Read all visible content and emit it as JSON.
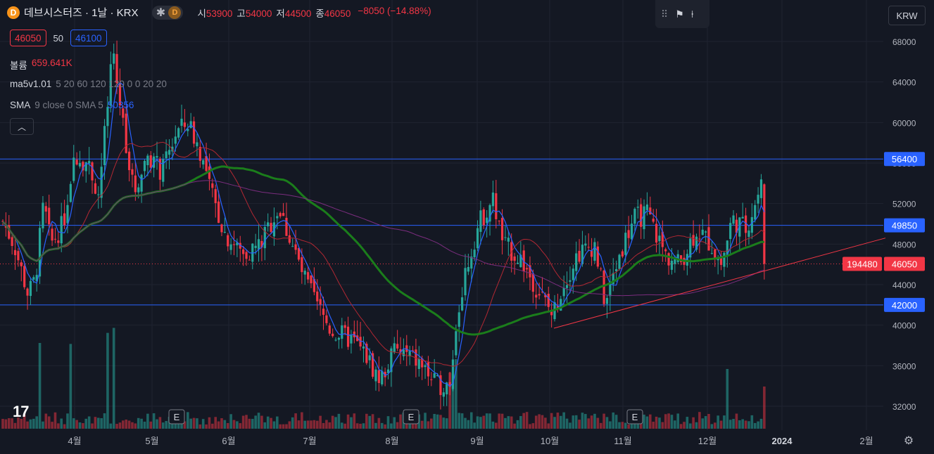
{
  "header": {
    "symbol_icon": "D",
    "title": "데브시스터즈 · 1날 · KRX",
    "pill_icons": [
      "asterisk-icon",
      "d-badge-icon"
    ],
    "pill_badge": "D",
    "ohlc": {
      "open_label": "시",
      "open": "53900",
      "high_label": "고",
      "high": "54000",
      "low_label": "저",
      "low": "44500",
      "close_label": "종",
      "close": "46050",
      "change": "−8050 (−14.88%)"
    }
  },
  "toolbar": {
    "icons": [
      "drag-handle-icon",
      "flag-icon",
      "pin-icon"
    ]
  },
  "quantity": {
    "sell": "46050",
    "qty": "50",
    "buy": "46100"
  },
  "indicators": [
    {
      "name": "볼륨",
      "args": "",
      "value": "659.641K"
    },
    {
      "name": "ma5v1.01",
      "args": "5 20 60 120 120 0 0 20 20",
      "value": ""
    },
    {
      "name": "SMA",
      "args": "9 close 0 SMA 5",
      "value": "50356"
    }
  ],
  "collapse_icon": "chevron-up-icon",
  "currency": "KRW",
  "y_axis_ticks": [
    "68000",
    "64000",
    "60000",
    "56000",
    "52000",
    "48000",
    "44000",
    "40000",
    "36000",
    "32000"
  ],
  "x_axis_ticks": [
    "4월",
    "5월",
    "6월",
    "7월",
    "8월",
    "9월",
    "10월",
    "11월",
    "12월",
    "2024",
    "2월"
  ],
  "price_tags": [
    {
      "label": "56400",
      "color": "#2962ff"
    },
    {
      "label": "49850",
      "color": "#2962ff"
    },
    {
      "label": "46050",
      "color": "#f23645"
    },
    {
      "label": "42000",
      "color": "#2962ff"
    },
    {
      "label": "194480",
      "color": "#f23645"
    }
  ],
  "earnings_markers": [
    "E",
    "E",
    "E"
  ],
  "tv_logo": "17",
  "colors": {
    "up": "#26a69a",
    "down": "#f23645",
    "blue": "#2962ff",
    "green_ma": "#1b7d1b",
    "purple_ma": "#7b2d7f",
    "dark_red_ma": "#b22833",
    "trend": "#f23645"
  },
  "chart_data": {
    "type": "candlestick",
    "timeframe": "1D",
    "ylim": [
      30000,
      69000
    ],
    "hlines": [
      56400,
      49850,
      42000
    ],
    "last_price": 46050,
    "trendline": {
      "from": [
        "2023-10-02",
        39700
      ],
      "to": [
        "2024-02-15",
        48600
      ]
    },
    "x_ticks": [
      "4월",
      "5월",
      "6월",
      "7월",
      "8월",
      "9월",
      "10월",
      "11월",
      "12월",
      "2024",
      "2월"
    ],
    "key_candles": [
      {
        "date": "2023-03-29",
        "low": 42000
      },
      {
        "date": "2023-04-25",
        "high": 67000
      },
      {
        "date": "2023-05-24",
        "high": 62000
      },
      {
        "date": "2023-08-25",
        "low": 33500
      },
      {
        "date": "2023-09-19",
        "high": 53500
      },
      {
        "date": "2023-10-02",
        "low": 40000
      },
      {
        "date": "2023-11-08",
        "high": 53000
      },
      {
        "date": "2023-12-26",
        "high": 55000
      },
      {
        "date": "2023-12-27",
        "open": 53900,
        "high": 54000,
        "low": 44500,
        "close": 46050
      }
    ],
    "last_volume": "659.641K"
  }
}
